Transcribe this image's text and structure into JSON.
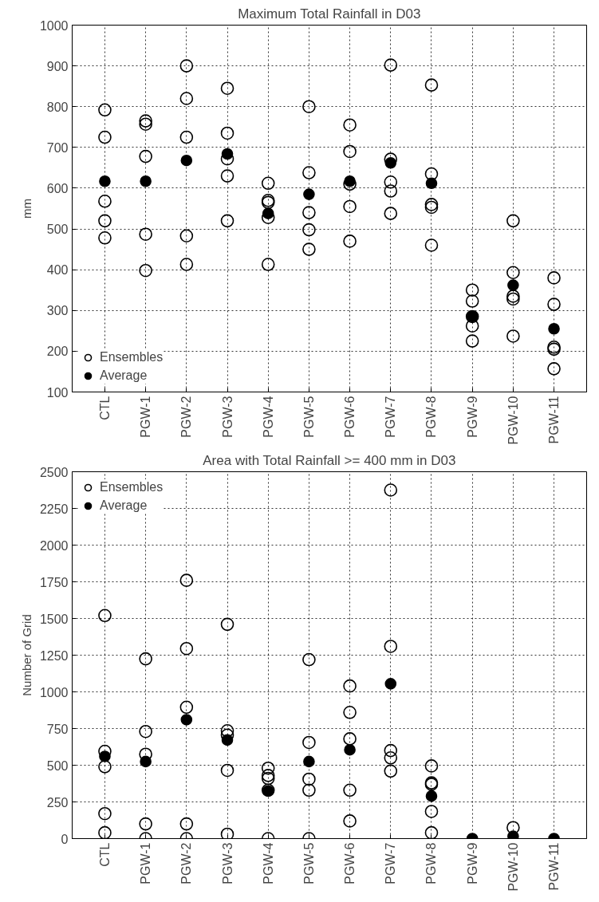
{
  "chart_data": [
    {
      "type": "scatter",
      "title": "Maximum Total Rainfall in D03",
      "ylabel": "mm",
      "categories": [
        "CTL",
        "PGW-1",
        "PGW-2",
        "PGW-3",
        "PGW-4",
        "PGW-5",
        "PGW-6",
        "PGW-7",
        "PGW-8",
        "PGW-9",
        "PGW-10",
        "PGW-11"
      ],
      "series": [
        {
          "name": "Ensembles",
          "color": "#000000",
          "x": [
            "CTL",
            "CTL",
            "CTL",
            "CTL",
            "CTL",
            "PGW-1",
            "PGW-1",
            "PGW-1",
            "PGW-1",
            "PGW-1",
            "PGW-2",
            "PGW-2",
            "PGW-2",
            "PGW-2",
            "PGW-2",
            "PGW-3",
            "PGW-3",
            "PGW-3",
            "PGW-3",
            "PGW-3",
            "PGW-4",
            "PGW-4",
            "PGW-4",
            "PGW-4",
            "PGW-4",
            "PGW-5",
            "PGW-5",
            "PGW-5",
            "PGW-5",
            "PGW-5",
            "PGW-6",
            "PGW-6",
            "PGW-6",
            "PGW-6",
            "PGW-6",
            "PGW-7",
            "PGW-7",
            "PGW-7",
            "PGW-7",
            "PGW-7",
            "PGW-8",
            "PGW-8",
            "PGW-8",
            "PGW-8",
            "PGW-8",
            "PGW-9",
            "PGW-9",
            "PGW-9",
            "PGW-9",
            "PGW-9",
            "PGW-10",
            "PGW-10",
            "PGW-10",
            "PGW-10",
            "PGW-10",
            "PGW-11",
            "PGW-11",
            "PGW-11",
            "PGW-11",
            "PGW-11"
          ],
          "values": [
            792,
            725,
            568,
            520,
            478,
            765,
            757,
            678,
            487,
            398,
            900,
            820,
            725,
            483,
            413,
            845,
            735,
            672,
            630,
            520,
            612,
            570,
            565,
            528,
            413,
            800,
            638,
            540,
            498,
            450,
            755,
            690,
            610,
            555,
            470,
            902,
            671,
            615,
            593,
            538,
            853,
            635,
            560,
            553,
            460,
            350,
            323,
            285,
            262,
            225,
            520,
            393,
            335,
            328,
            237,
            380,
            315,
            210,
            205,
            157
          ]
        },
        {
          "name": "Average",
          "color": "#000000",
          "x": [
            "CTL",
            "PGW-1",
            "PGW-2",
            "PGW-3",
            "PGW-4",
            "PGW-5",
            "PGW-6",
            "PGW-7",
            "PGW-8",
            "PGW-9",
            "PGW-10",
            "PGW-11"
          ],
          "values": [
            617,
            617,
            668,
            684,
            538,
            585,
            617,
            662,
            612,
            285,
            362,
            255
          ]
        }
      ],
      "ylim": [
        100,
        1000
      ],
      "yticks": [
        100,
        200,
        300,
        400,
        500,
        600,
        700,
        800,
        900,
        1000
      ],
      "grid": true,
      "legend": "bottom left",
      "marker": "circle"
    },
    {
      "type": "scatter",
      "title": "Area with Total Rainfall >= 400 mm in D03",
      "ylabel": "Number of Grid",
      "categories": [
        "CTL",
        "PGW-1",
        "PGW-2",
        "PGW-3",
        "PGW-4",
        "PGW-5",
        "PGW-6",
        "PGW-7",
        "PGW-8",
        "PGW-9",
        "PGW-10",
        "PGW-11"
      ],
      "series": [
        {
          "name": "Ensembles",
          "color": "#000000",
          "x": [
            "CTL",
            "CTL",
            "CTL",
            "CTL",
            "CTL",
            "PGW-1",
            "PGW-1",
            "PGW-1",
            "PGW-1",
            "PGW-1",
            "PGW-2",
            "PGW-2",
            "PGW-2",
            "PGW-2",
            "PGW-2",
            "PGW-3",
            "PGW-3",
            "PGW-3",
            "PGW-3",
            "PGW-3",
            "PGW-4",
            "PGW-4",
            "PGW-4",
            "PGW-4",
            "PGW-4",
            "PGW-5",
            "PGW-5",
            "PGW-5",
            "PGW-5",
            "PGW-5",
            "PGW-6",
            "PGW-6",
            "PGW-6",
            "PGW-6",
            "PGW-6",
            "PGW-7",
            "PGW-7",
            "PGW-7",
            "PGW-7",
            "PGW-7",
            "PGW-8",
            "PGW-8",
            "PGW-8",
            "PGW-8",
            "PGW-8",
            "PGW-9",
            "PGW-9",
            "PGW-9",
            "PGW-9",
            "PGW-9",
            "PGW-10",
            "PGW-10",
            "PGW-10",
            "PGW-10",
            "PGW-10",
            "PGW-11",
            "PGW-11",
            "PGW-11",
            "PGW-11",
            "PGW-11"
          ],
          "values": [
            1520,
            595,
            490,
            170,
            40,
            1225,
            730,
            575,
            100,
            0,
            1760,
            1295,
            895,
            100,
            0,
            1460,
            735,
            705,
            465,
            30,
            480,
            430,
            410,
            330,
            0,
            1220,
            655,
            405,
            330,
            0,
            1040,
            860,
            680,
            330,
            120,
            2375,
            1310,
            600,
            550,
            460,
            495,
            380,
            370,
            185,
            40,
            null,
            null,
            null,
            null,
            null,
            75,
            null,
            null,
            null,
            null,
            null,
            null,
            null,
            null,
            null
          ]
        },
        {
          "name": "Average",
          "color": "#000000",
          "x": [
            "CTL",
            "PGW-1",
            "PGW-2",
            "PGW-3",
            "PGW-4",
            "PGW-5",
            "PGW-6",
            "PGW-7",
            "PGW-8",
            "PGW-9",
            "PGW-10",
            "PGW-11"
          ],
          "values": [
            560,
            525,
            810,
            672,
            325,
            525,
            605,
            1055,
            290,
            0,
            16,
            0
          ]
        }
      ],
      "ylim": [
        0,
        2500
      ],
      "yticks": [
        0,
        250,
        500,
        750,
        1000,
        1250,
        1500,
        1750,
        2000,
        2250,
        2500
      ],
      "grid": true,
      "legend": "top left",
      "marker": "circle"
    }
  ]
}
